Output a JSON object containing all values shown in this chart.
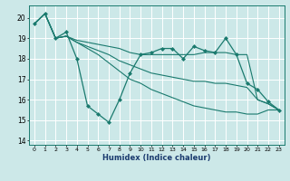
{
  "xlabel": "Humidex (Indice chaleur)",
  "background_color": "#cce8e8",
  "grid_color": "#ffffff",
  "line_color": "#1a7a6e",
  "xlim": [
    -0.5,
    23.5
  ],
  "ylim": [
    13.8,
    20.6
  ],
  "yticks": [
    14,
    15,
    16,
    17,
    18,
    19,
    20
  ],
  "xticks": [
    0,
    1,
    2,
    3,
    4,
    5,
    6,
    7,
    8,
    9,
    10,
    11,
    12,
    13,
    14,
    15,
    16,
    17,
    18,
    19,
    20,
    21,
    22,
    23
  ],
  "series": [
    [
      19.7,
      20.2,
      19.0,
      19.3,
      18.0,
      15.7,
      15.3,
      14.9,
      16.0,
      17.3,
      18.2,
      18.3,
      18.5,
      18.5,
      18.0,
      18.6,
      18.4,
      18.3,
      19.0,
      18.2,
      16.8,
      16.5,
      15.9,
      15.5
    ],
    [
      19.7,
      20.2,
      19.0,
      19.1,
      18.9,
      18.8,
      18.7,
      18.6,
      18.5,
      18.3,
      18.2,
      18.2,
      18.2,
      18.2,
      18.2,
      18.2,
      18.3,
      18.3,
      18.3,
      18.2,
      18.2,
      16.0,
      15.8,
      15.5
    ],
    [
      19.7,
      20.2,
      19.0,
      19.1,
      18.8,
      18.6,
      18.4,
      18.2,
      17.9,
      17.7,
      17.5,
      17.3,
      17.2,
      17.1,
      17.0,
      16.9,
      16.9,
      16.8,
      16.8,
      16.7,
      16.6,
      16.0,
      15.8,
      15.5
    ],
    [
      19.7,
      20.2,
      19.0,
      19.1,
      18.8,
      18.5,
      18.2,
      17.8,
      17.4,
      17.0,
      16.8,
      16.5,
      16.3,
      16.1,
      15.9,
      15.7,
      15.6,
      15.5,
      15.4,
      15.4,
      15.3,
      15.3,
      15.5,
      15.5
    ]
  ]
}
